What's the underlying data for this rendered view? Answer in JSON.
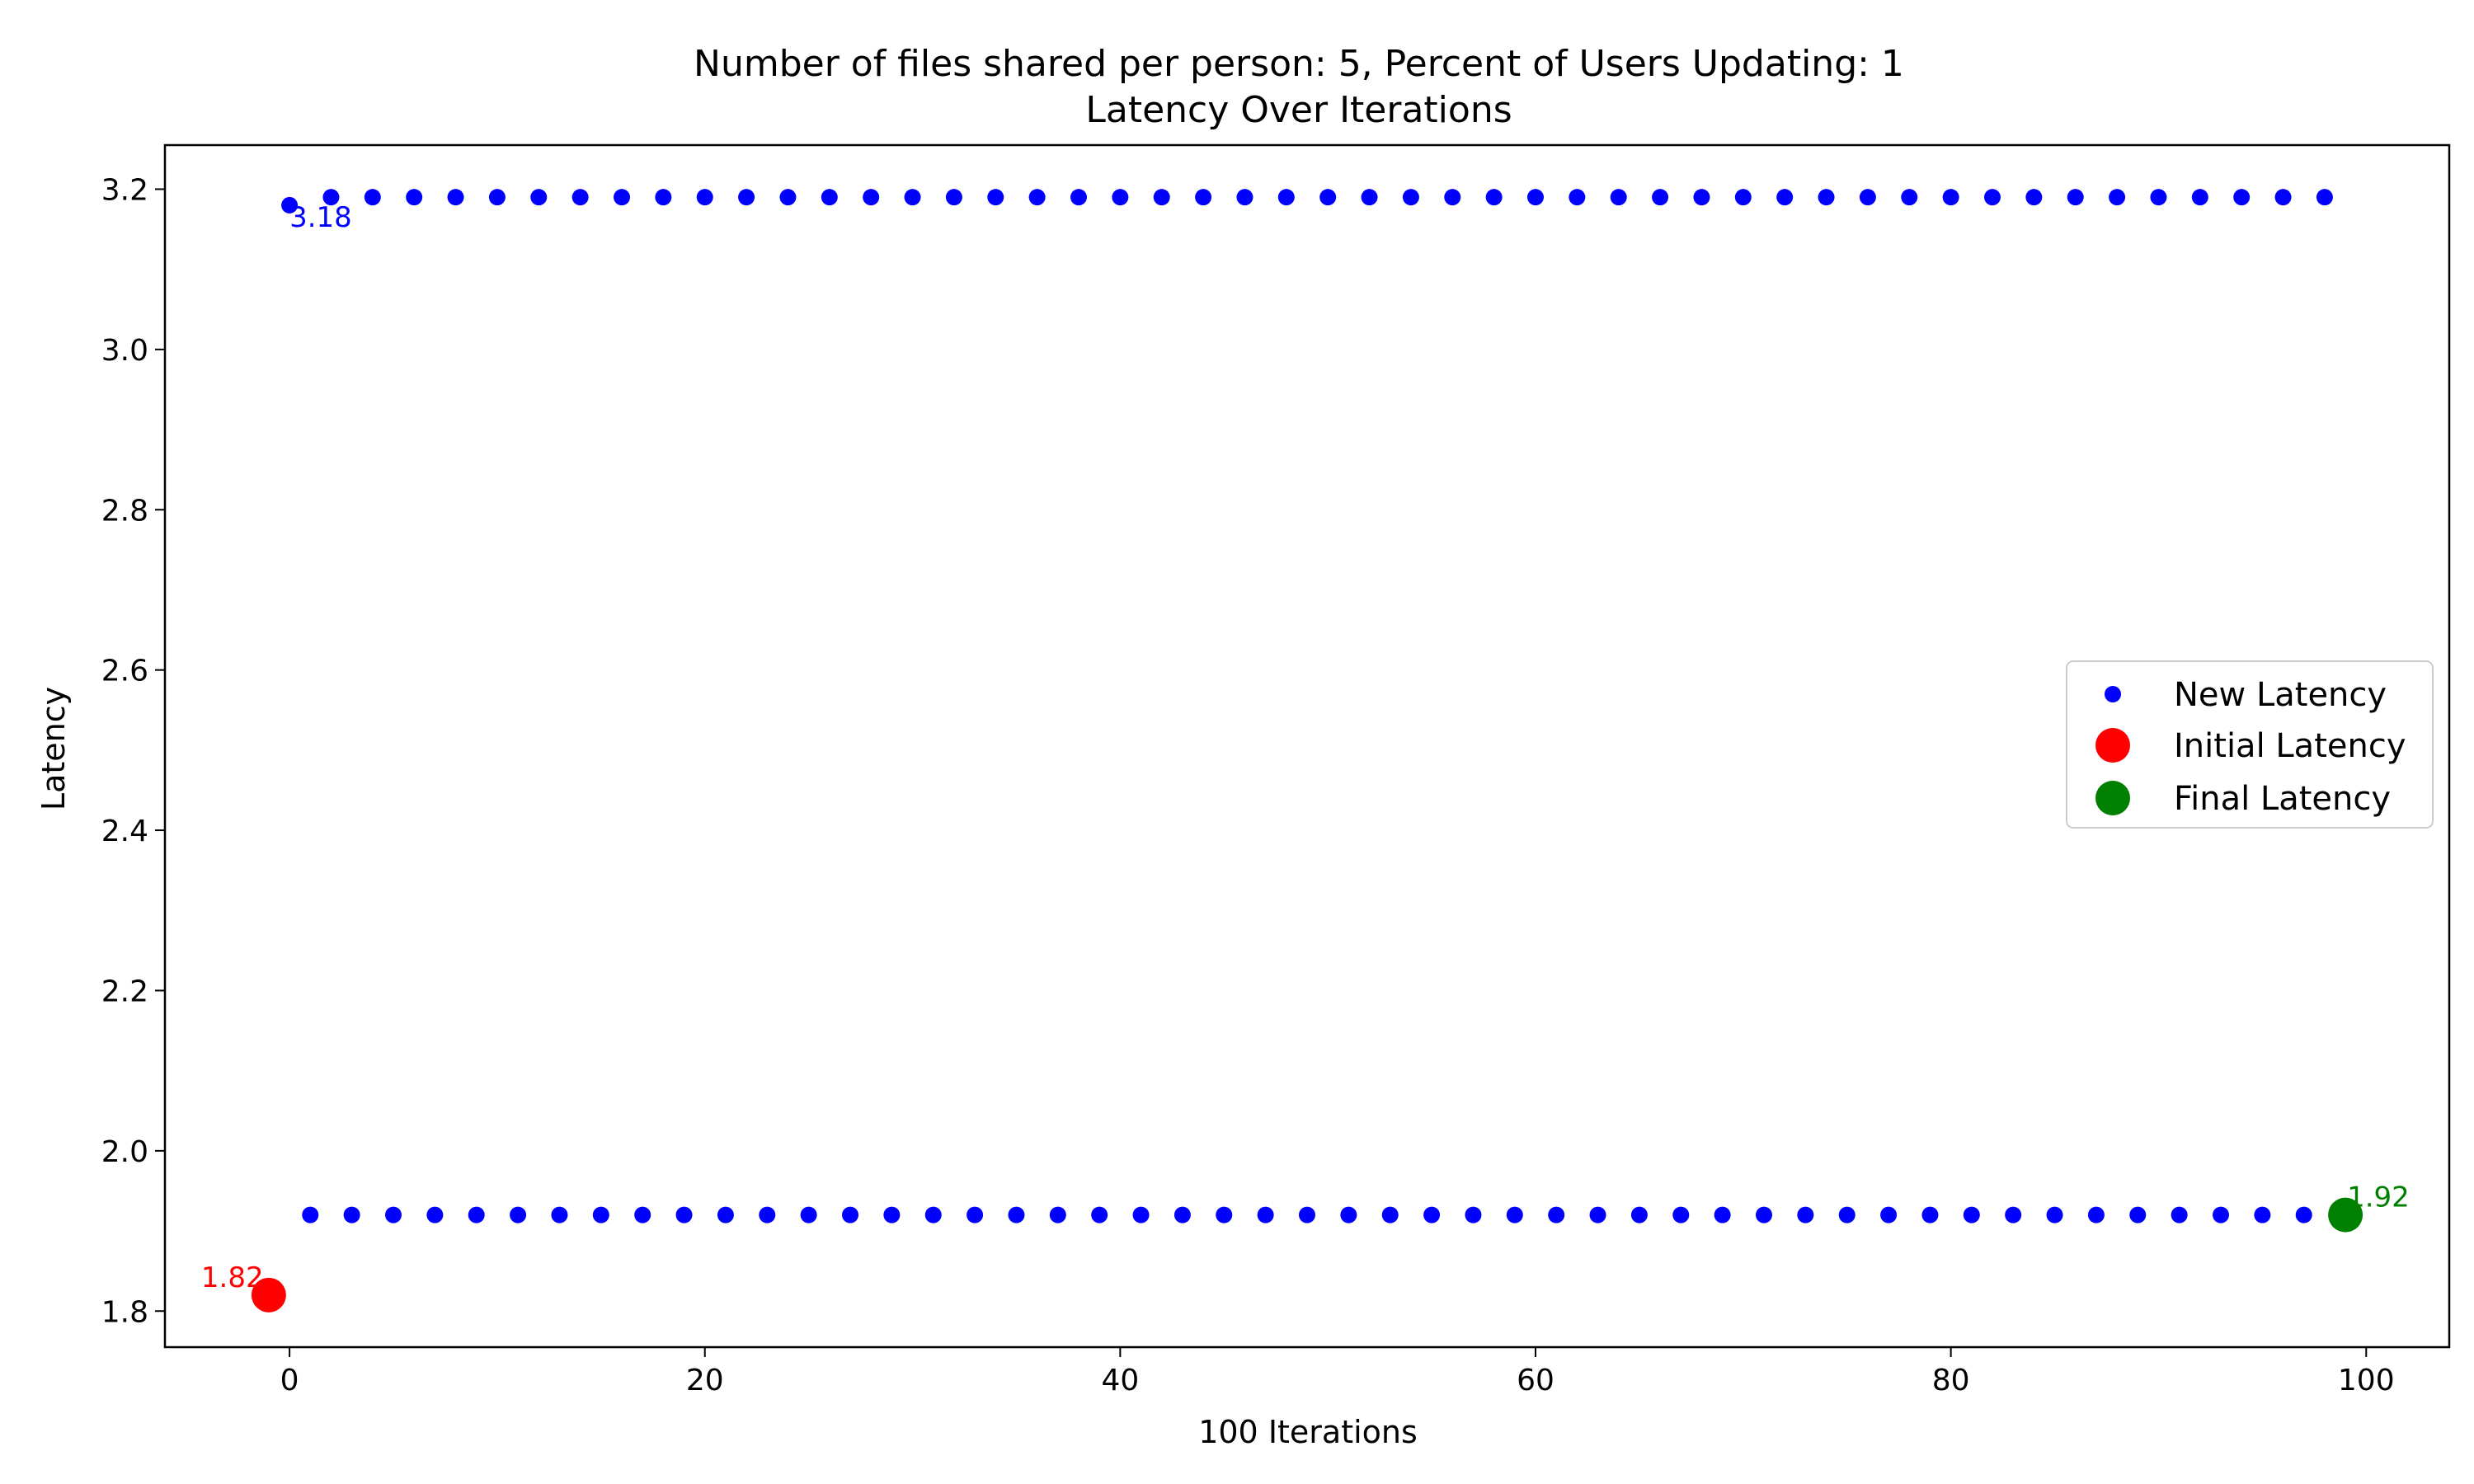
{
  "chart_data": {
    "type": "scatter",
    "title": "Number of files shared per person: 5, Percent of Users Updating: 1",
    "subtitle": "Latency Over Iterations",
    "xlabel": "100 Iterations",
    "ylabel": "Latency",
    "xlim": [
      -6,
      104
    ],
    "ylim": [
      1.755,
      3.255
    ],
    "xticks": [
      0,
      20,
      40,
      60,
      80,
      100
    ],
    "yticks": [
      1.8,
      2.0,
      2.2,
      2.4,
      2.6,
      2.8,
      3.0,
      3.2
    ],
    "xtick_labels": [
      "0",
      "20",
      "40",
      "60",
      "80",
      "100"
    ],
    "ytick_labels": [
      "1.8",
      "2.0",
      "2.2",
      "2.4",
      "2.6",
      "2.8",
      "3.0",
      "3.2"
    ],
    "grid": false,
    "legend": {
      "placement": "center-right",
      "entries": [
        "New Latency",
        "Initial Latency",
        "Final Latency"
      ]
    },
    "series": [
      {
        "name": "New Latency",
        "color": "#0000ff",
        "marker": "small-circle",
        "points": [
          [
            0,
            3.18
          ],
          [
            2,
            3.19
          ],
          [
            4,
            3.19
          ],
          [
            6,
            3.19
          ],
          [
            8,
            3.19
          ],
          [
            10,
            3.19
          ],
          [
            12,
            3.19
          ],
          [
            14,
            3.19
          ],
          [
            16,
            3.19
          ],
          [
            18,
            3.19
          ],
          [
            20,
            3.19
          ],
          [
            22,
            3.19
          ],
          [
            24,
            3.19
          ],
          [
            26,
            3.19
          ],
          [
            28,
            3.19
          ],
          [
            30,
            3.19
          ],
          [
            32,
            3.19
          ],
          [
            34,
            3.19
          ],
          [
            36,
            3.19
          ],
          [
            38,
            3.19
          ],
          [
            40,
            3.19
          ],
          [
            42,
            3.19
          ],
          [
            44,
            3.19
          ],
          [
            46,
            3.19
          ],
          [
            48,
            3.19
          ],
          [
            50,
            3.19
          ],
          [
            52,
            3.19
          ],
          [
            54,
            3.19
          ],
          [
            56,
            3.19
          ],
          [
            58,
            3.19
          ],
          [
            60,
            3.19
          ],
          [
            62,
            3.19
          ],
          [
            64,
            3.19
          ],
          [
            66,
            3.19
          ],
          [
            68,
            3.19
          ],
          [
            70,
            3.19
          ],
          [
            72,
            3.19
          ],
          [
            74,
            3.19
          ],
          [
            76,
            3.19
          ],
          [
            78,
            3.19
          ],
          [
            80,
            3.19
          ],
          [
            82,
            3.19
          ],
          [
            84,
            3.19
          ],
          [
            86,
            3.19
          ],
          [
            88,
            3.19
          ],
          [
            90,
            3.19
          ],
          [
            92,
            3.19
          ],
          [
            94,
            3.19
          ],
          [
            96,
            3.19
          ],
          [
            98,
            3.19
          ],
          [
            1,
            1.92
          ],
          [
            3,
            1.92
          ],
          [
            5,
            1.92
          ],
          [
            7,
            1.92
          ],
          [
            9,
            1.92
          ],
          [
            11,
            1.92
          ],
          [
            13,
            1.92
          ],
          [
            15,
            1.92
          ],
          [
            17,
            1.92
          ],
          [
            19,
            1.92
          ],
          [
            21,
            1.92
          ],
          [
            23,
            1.92
          ],
          [
            25,
            1.92
          ],
          [
            27,
            1.92
          ],
          [
            29,
            1.92
          ],
          [
            31,
            1.92
          ],
          [
            33,
            1.92
          ],
          [
            35,
            1.92
          ],
          [
            37,
            1.92
          ],
          [
            39,
            1.92
          ],
          [
            41,
            1.92
          ],
          [
            43,
            1.92
          ],
          [
            45,
            1.92
          ],
          [
            47,
            1.92
          ],
          [
            49,
            1.92
          ],
          [
            51,
            1.92
          ],
          [
            53,
            1.92
          ],
          [
            55,
            1.92
          ],
          [
            57,
            1.92
          ],
          [
            59,
            1.92
          ],
          [
            61,
            1.92
          ],
          [
            63,
            1.92
          ],
          [
            65,
            1.92
          ],
          [
            67,
            1.92
          ],
          [
            69,
            1.92
          ],
          [
            71,
            1.92
          ],
          [
            73,
            1.92
          ],
          [
            75,
            1.92
          ],
          [
            77,
            1.92
          ],
          [
            79,
            1.92
          ],
          [
            81,
            1.92
          ],
          [
            83,
            1.92
          ],
          [
            85,
            1.92
          ],
          [
            87,
            1.92
          ],
          [
            89,
            1.92
          ],
          [
            91,
            1.92
          ],
          [
            93,
            1.92
          ],
          [
            95,
            1.92
          ],
          [
            97,
            1.92
          ]
        ]
      },
      {
        "name": "Initial Latency",
        "color": "#ff0000",
        "marker": "large-circle",
        "points": [
          [
            -1,
            1.82
          ]
        ]
      },
      {
        "name": "Final Latency",
        "color": "#008000",
        "marker": "large-circle",
        "points": [
          [
            99,
            1.92
          ]
        ]
      }
    ],
    "annotations": [
      {
        "text": "3.18",
        "x": 0,
        "y": 3.18,
        "color": "#0000ff"
      },
      {
        "text": "1.82",
        "x": -1,
        "y": 1.82,
        "color": "#ff0000"
      },
      {
        "text": "1.92",
        "x": 99,
        "y": 1.92,
        "color": "#008000"
      }
    ]
  }
}
